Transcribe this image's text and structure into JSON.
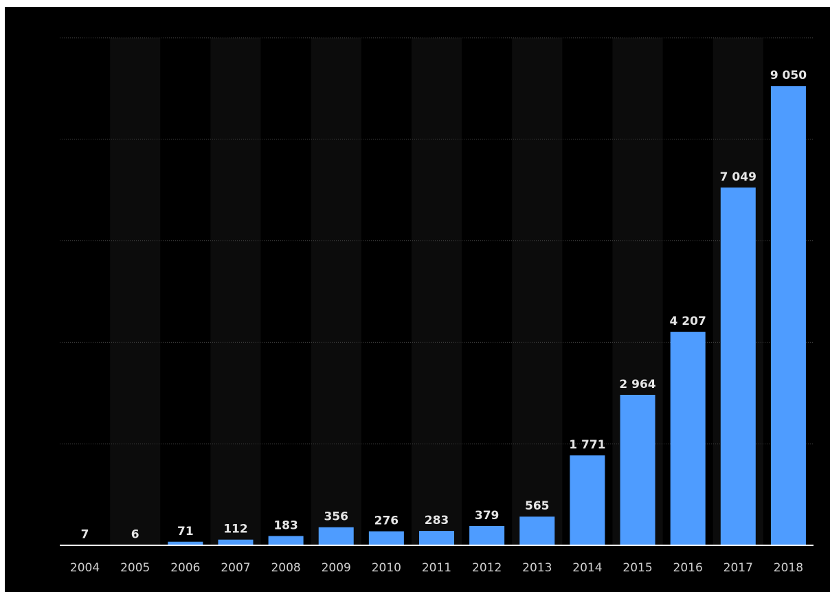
{
  "chart_data": {
    "type": "bar",
    "categories": [
      "2004",
      "2005",
      "2006",
      "2007",
      "2008",
      "2009",
      "2010",
      "2011",
      "2012",
      "2013",
      "2014",
      "2015",
      "2016",
      "2017",
      "2018"
    ],
    "values": [
      7,
      6,
      71,
      112,
      183,
      356,
      276,
      283,
      379,
      565,
      1771,
      2964,
      4207,
      7049,
      9050
    ],
    "value_labels": [
      "7",
      "6",
      "71",
      "112",
      "183",
      "356",
      "276",
      "283",
      "379",
      "565",
      "1 771",
      "2 964",
      "4 207",
      "7 049",
      "9 050"
    ],
    "ylim": [
      0,
      10000
    ],
    "y_gridlines": [
      0,
      2000,
      4000,
      6000,
      8000,
      10000
    ],
    "grid": true,
    "legend": "none",
    "colors": {
      "background": "#000000",
      "bar": "#4e9cff",
      "band": "#0c0c0c",
      "gridline": "#4a4a4a",
      "baseline": "#ffffff",
      "value_text": "#e6e6e6",
      "tick_text": "#cfcfcf"
    }
  }
}
